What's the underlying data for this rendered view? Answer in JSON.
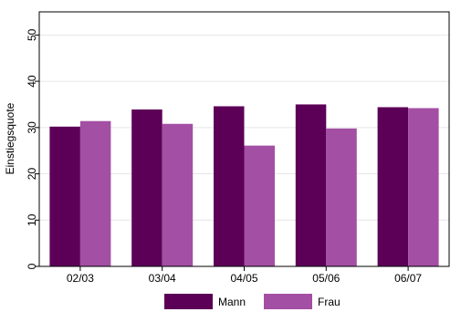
{
  "chart_data": {
    "type": "bar",
    "categories": [
      "02/03",
      "03/04",
      "04/05",
      "05/06",
      "06/07"
    ],
    "series": [
      {
        "name": "Mann",
        "values": [
          30.2,
          33.9,
          34.6,
          35.0,
          34.4
        ],
        "color": "#5c0057"
      },
      {
        "name": "Frau",
        "values": [
          31.4,
          30.8,
          26.1,
          29.8,
          34.2
        ],
        "color": "#a34fa3"
      }
    ],
    "ylabel": "Einstiegsquote",
    "xlabel": "",
    "ylim": [
      0,
      55
    ],
    "yticks": [
      0,
      10,
      20,
      30,
      40,
      50
    ],
    "grid": true,
    "legend_position": "bottom"
  }
}
